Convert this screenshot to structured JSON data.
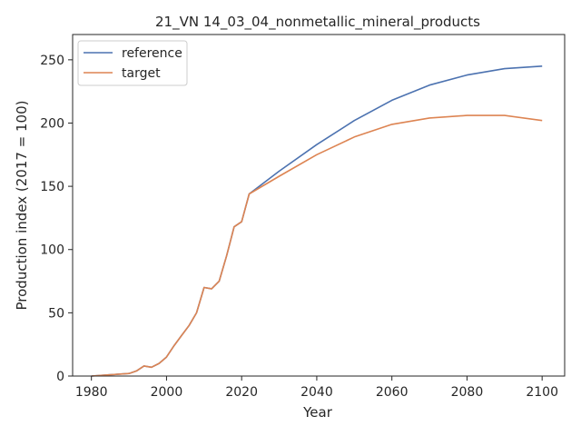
{
  "chart_data": {
    "type": "line",
    "title": "21_VN 14_03_04_nonmetallic_mineral_products",
    "xlabel": "Year",
    "ylabel": "Production index (2017 = 100)",
    "xlim": [
      1975,
      2106
    ],
    "ylim": [
      0,
      270
    ],
    "xticks": [
      1980,
      2000,
      2020,
      2040,
      2060,
      2080,
      2100
    ],
    "yticks": [
      0,
      50,
      100,
      150,
      200,
      250
    ],
    "grid": false,
    "legend_position": "top-left",
    "series": [
      {
        "name": "reference",
        "color": "#4c72b0",
        "x": [
          1980,
          1985,
          1990,
          1992,
          1994,
          1996,
          1998,
          2000,
          2002,
          2004,
          2006,
          2008,
          2010,
          2012,
          2014,
          2016,
          2018,
          2020,
          2022,
          2030,
          2040,
          2050,
          2060,
          2070,
          2080,
          2090,
          2100
        ],
        "y": [
          0,
          1,
          2,
          4,
          8,
          7,
          10,
          15,
          24,
          32,
          40,
          50,
          70,
          69,
          75,
          95,
          118,
          122,
          144,
          162,
          183,
          202,
          218,
          230,
          238,
          243,
          245
        ]
      },
      {
        "name": "target",
        "color": "#dd8452",
        "x": [
          1980,
          1985,
          1990,
          1992,
          1994,
          1996,
          1998,
          2000,
          2002,
          2004,
          2006,
          2008,
          2010,
          2012,
          2014,
          2016,
          2018,
          2020,
          2022,
          2030,
          2040,
          2050,
          2060,
          2070,
          2080,
          2090,
          2100
        ],
        "y": [
          0,
          1,
          2,
          4,
          8,
          7,
          10,
          15,
          24,
          32,
          40,
          50,
          70,
          69,
          75,
          95,
          118,
          122,
          144,
          158,
          175,
          189,
          199,
          204,
          206,
          206,
          202
        ]
      }
    ]
  }
}
